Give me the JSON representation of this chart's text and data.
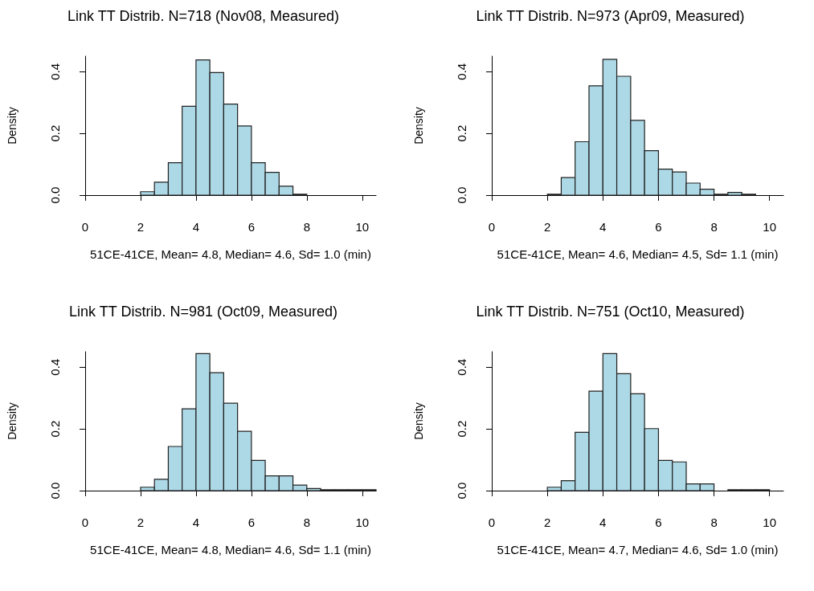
{
  "chart_data": [
    {
      "type": "histogram",
      "title": "Link TT Distrib. N=718 (Nov08, Measured)",
      "xlabel": "51CE-41CE, Mean= 4.8, Median= 4.6, Sd= 1.0 (min)",
      "ylabel": "Density",
      "color": "#add8e6",
      "bins": [
        2,
        2.5,
        3,
        3.5,
        4,
        4.5,
        5,
        5.5,
        6,
        6.5,
        7,
        7.5,
        8
      ],
      "values": [
        0.011,
        0.042,
        0.105,
        0.288,
        0.438,
        0.397,
        0.295,
        0.224,
        0.105,
        0.074,
        0.029,
        0.003
      ],
      "xlim": [
        0,
        10.5
      ],
      "xticks": [
        0,
        2,
        4,
        6,
        8,
        10
      ],
      "ylim": [
        0,
        0.45
      ],
      "yticks": [
        {
          "value": 0,
          "label": "0.0"
        },
        {
          "value": 0.2,
          "label": "0.2"
        },
        {
          "value": 0.4,
          "label": "0.4"
        }
      ],
      "grid": false
    },
    {
      "type": "histogram",
      "title": "Link TT Distrib. N=973 (Apr09, Measured)",
      "xlabel": "51CE-41CE, Mean= 4.6, Median= 4.5, Sd= 1.1 (min)",
      "ylabel": "Density",
      "color": "#add8e6",
      "bins": [
        2,
        2.5,
        3,
        3.5,
        4,
        4.5,
        5,
        5.5,
        6,
        6.5,
        7,
        7.5,
        8,
        8.5,
        9,
        9.5
      ],
      "values": [
        0.003,
        0.057,
        0.173,
        0.354,
        0.44,
        0.385,
        0.242,
        0.144,
        0.084,
        0.075,
        0.039,
        0.019,
        0.003,
        0.009,
        0.003
      ],
      "xlim": [
        0,
        10.5
      ],
      "xticks": [
        0,
        2,
        4,
        6,
        8,
        10
      ],
      "ylim": [
        0,
        0.45
      ],
      "yticks": [
        {
          "value": 0,
          "label": "0.0"
        },
        {
          "value": 0.2,
          "label": "0.2"
        },
        {
          "value": 0.4,
          "label": "0.4"
        }
      ],
      "grid": false
    },
    {
      "type": "histogram",
      "title": "Link TT Distrib. N=981 (Oct09, Measured)",
      "xlabel": "51CE-41CE, Mean= 4.8, Median= 4.6, Sd= 1.1 (min)",
      "ylabel": "Density",
      "color": "#add8e6",
      "bins": [
        2,
        2.5,
        3,
        3.5,
        4,
        4.5,
        5,
        5.5,
        6,
        6.5,
        7,
        7.5,
        8,
        8.5,
        9,
        9.5,
        10,
        10.5
      ],
      "values": [
        0.011,
        0.037,
        0.143,
        0.265,
        0.444,
        0.382,
        0.283,
        0.192,
        0.098,
        0.048,
        0.048,
        0.018,
        0.007,
        0.003,
        0.003,
        0.003,
        0.003
      ],
      "xlim": [
        0,
        10.5
      ],
      "xticks": [
        0,
        2,
        4,
        6,
        8,
        10
      ],
      "ylim": [
        0,
        0.45
      ],
      "yticks": [
        {
          "value": 0,
          "label": "0.0"
        },
        {
          "value": 0.2,
          "label": "0.2"
        },
        {
          "value": 0.4,
          "label": "0.4"
        }
      ],
      "grid": false
    },
    {
      "type": "histogram",
      "title": "Link TT Distrib. N=751 (Oct10, Measured)",
      "xlabel": "51CE-41CE, Mean= 4.7, Median= 4.6, Sd= 1.0 (min)",
      "ylabel": "Density",
      "color": "#add8e6",
      "bins": [
        2,
        2.5,
        3,
        3.5,
        4,
        4.5,
        5,
        5.5,
        6,
        6.5,
        7,
        7.5,
        8,
        8.5,
        9,
        9.5,
        10
      ],
      "values": [
        0.011,
        0.032,
        0.189,
        0.322,
        0.444,
        0.379,
        0.314,
        0.201,
        0.098,
        0.093,
        0.022,
        0.022,
        0,
        0.003,
        0.003,
        0.003
      ],
      "xlim": [
        0,
        10.5
      ],
      "xticks": [
        0,
        2,
        4,
        6,
        8,
        10
      ],
      "ylim": [
        0,
        0.45
      ],
      "yticks": [
        {
          "value": 0,
          "label": "0.0"
        },
        {
          "value": 0.2,
          "label": "0.2"
        },
        {
          "value": 0.4,
          "label": "0.4"
        }
      ],
      "grid": false
    }
  ]
}
